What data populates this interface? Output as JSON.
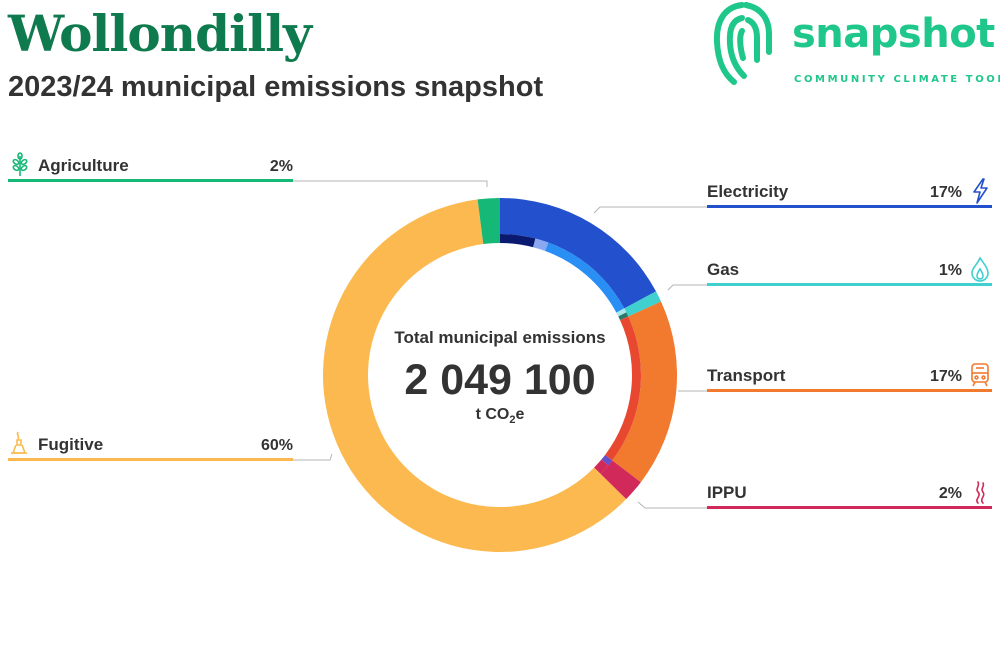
{
  "header": {
    "title": "Wollondilly",
    "subtitle": "2023/24 municipal emissions snapshot"
  },
  "logo": {
    "wordmark": "snapshot",
    "tagline": "COMMUNITY CLIMATE TOOL",
    "icon": "fingerprint-icon",
    "color": "#1fc78a"
  },
  "center": {
    "label": "Total municipal emissions",
    "value": "2 049 100",
    "unit_prefix": "t CO",
    "unit_sub": "2",
    "unit_suffix": "e"
  },
  "chart_data": {
    "type": "donut",
    "total": 2049100,
    "unit": "t CO2e",
    "sectors": [
      {
        "name": "Electricity",
        "percent_label": "17%",
        "value": 17,
        "color": "#2350cc",
        "icon": "lightning-icon",
        "inner": [
          {
            "value": 4.0,
            "color": "#0a1a70"
          },
          {
            "value": 1.5,
            "color": "#8aa8f0"
          },
          {
            "value": 11.5,
            "color": "#2a8ff5"
          }
        ]
      },
      {
        "name": "Gas",
        "percent_label": "1%",
        "value": 1,
        "color": "#3fd0cf",
        "icon": "flame-icon",
        "inner": [
          {
            "value": 0.5,
            "color": "#a8e8e8"
          },
          {
            "value": 0.5,
            "color": "#2a7a6a"
          }
        ]
      },
      {
        "name": "Transport",
        "percent_label": "17%",
        "value": 17,
        "color": "#f27a2e",
        "icon": "train-icon",
        "inner": [
          {
            "value": 17,
            "color": "#e84830"
          }
        ]
      },
      {
        "name": "IPPU",
        "percent_label": "2%",
        "value": 2,
        "color": "#d12a5a",
        "icon": "smoke-icon",
        "inner": [
          {
            "value": 0.7,
            "color": "#6a50c8"
          },
          {
            "value": 1.3,
            "color": "#d12a5a"
          }
        ]
      },
      {
        "name": "Fugitive",
        "percent_label": "60%",
        "value": 60,
        "color": "#fbb94f",
        "icon": "gas-flare-icon"
      },
      {
        "name": "Agriculture",
        "percent_label": "2%",
        "value": 2,
        "color": "#16b877",
        "icon": "wheat-icon"
      }
    ]
  }
}
